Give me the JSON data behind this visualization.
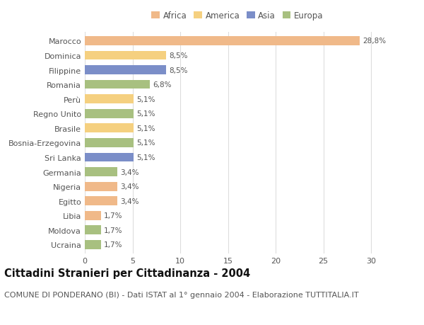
{
  "categories": [
    "Marocco",
    "Dominica",
    "Filippine",
    "Romania",
    "Perù",
    "Regno Unito",
    "Brasile",
    "Bosnia-Erzegovina",
    "Sri Lanka",
    "Germania",
    "Nigeria",
    "Egitto",
    "Libia",
    "Moldova",
    "Ucraina"
  ],
  "values": [
    28.8,
    8.5,
    8.5,
    6.8,
    5.1,
    5.1,
    5.1,
    5.1,
    5.1,
    3.4,
    3.4,
    3.4,
    1.7,
    1.7,
    1.7
  ],
  "labels": [
    "28,8%",
    "8,5%",
    "8,5%",
    "6,8%",
    "5,1%",
    "5,1%",
    "5,1%",
    "5,1%",
    "5,1%",
    "3,4%",
    "3,4%",
    "3,4%",
    "1,7%",
    "1,7%",
    "1,7%"
  ],
  "colors": [
    "#F0B989",
    "#F5D080",
    "#7B8EC8",
    "#A8C080",
    "#F5D080",
    "#A8C080",
    "#F5D080",
    "#A8C080",
    "#7B8EC8",
    "#A8C080",
    "#F0B989",
    "#F0B989",
    "#F0B989",
    "#A8C080",
    "#A8C080"
  ],
  "legend_labels": [
    "Africa",
    "America",
    "Asia",
    "Europa"
  ],
  "legend_colors": [
    "#F0B989",
    "#F5D080",
    "#7B8EC8",
    "#A8C080"
  ],
  "title": "Cittadini Stranieri per Cittadinanza - 2004",
  "subtitle": "COMUNE DI PONDERANO (BI) - Dati ISTAT al 1° gennaio 2004 - Elaborazione TUTTITALIA.IT",
  "xlim": [
    0,
    32
  ],
  "xticks": [
    0,
    5,
    10,
    15,
    20,
    25,
    30
  ],
  "bg_color": "#FFFFFF",
  "grid_color": "#DDDDDD",
  "bar_height": 0.62,
  "title_fontsize": 10.5,
  "subtitle_fontsize": 8,
  "label_fontsize": 7.5,
  "tick_fontsize": 8,
  "legend_fontsize": 8.5
}
